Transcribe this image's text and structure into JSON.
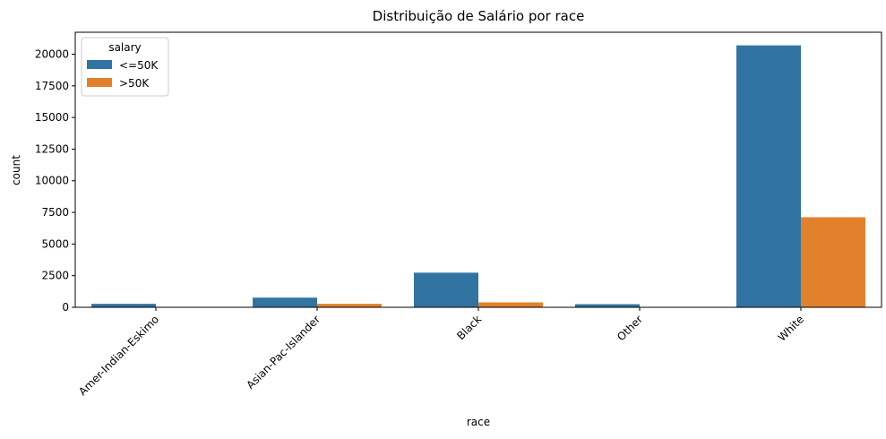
{
  "chart_data": {
    "type": "bar",
    "title": "Distribuição de Salário por race",
    "xlabel": "race",
    "ylabel": "count",
    "categories": [
      "Amer-Indian-Eskimo",
      "Asian-Pac-Islander",
      "Black",
      "Other",
      "White"
    ],
    "series": [
      {
        "name": "<=50K",
        "color": "#3274a1",
        "values": [
          275,
          763,
          2737,
          246,
          20699
        ]
      },
      {
        "name": ">50K",
        "color": "#e1812c",
        "values": [
          36,
          276,
          387,
          25,
          7117
        ]
      }
    ],
    "ylim": [
      0,
      21734
    ],
    "yticks": [
      0,
      2500,
      5000,
      7500,
      10000,
      12500,
      15000,
      17500,
      20000
    ],
    "xtick_rotation": 45,
    "grid": false,
    "legend": {
      "title": "salary",
      "placement": "top-left"
    }
  }
}
